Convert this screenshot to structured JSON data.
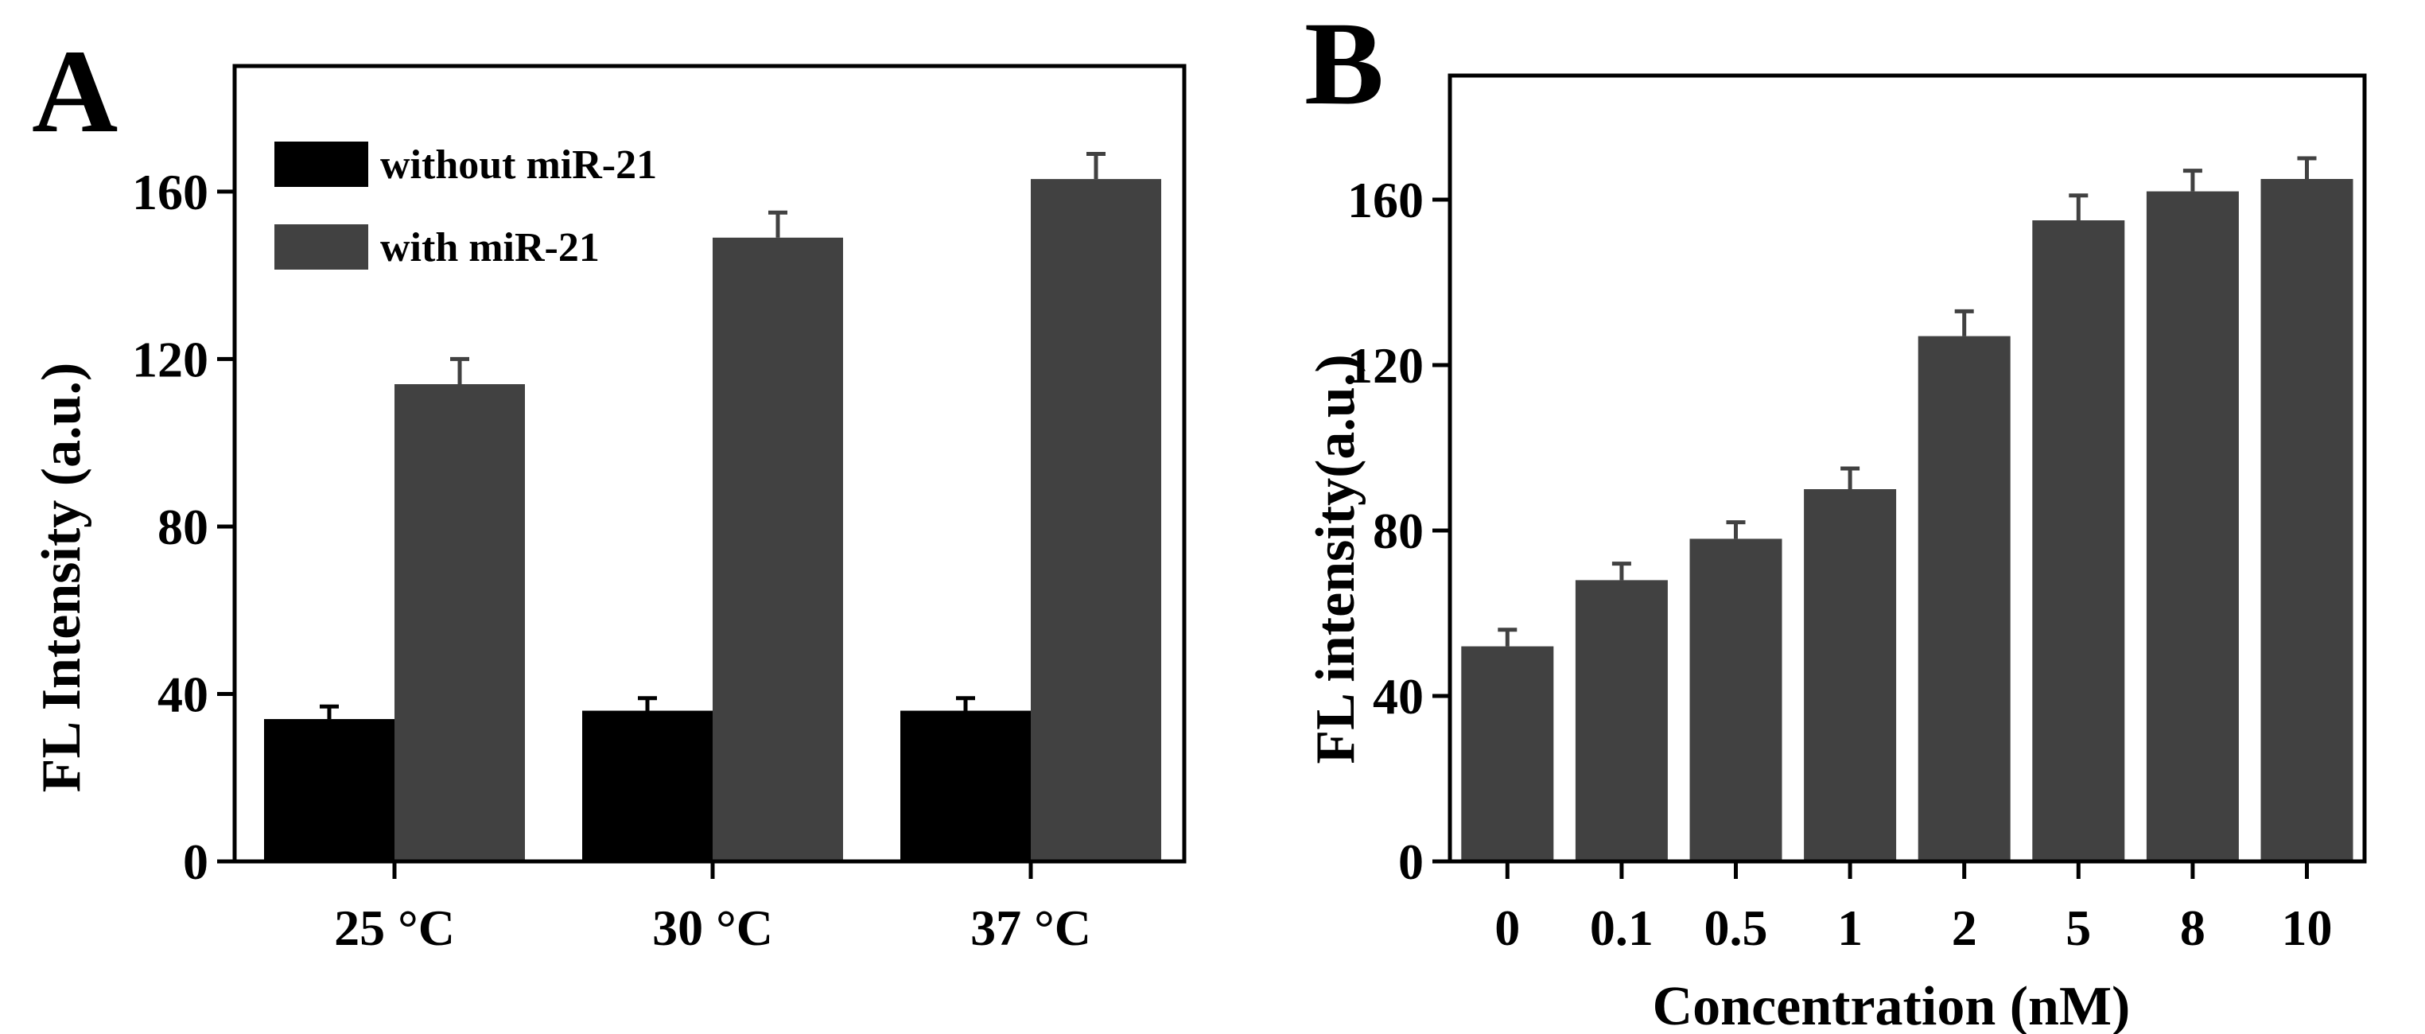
{
  "chart_data": [
    {
      "panel": "A",
      "type": "bar",
      "title": "",
      "xlabel": "",
      "ylabel": "FL Intensity (a.u.)",
      "ylim": [
        0,
        190
      ],
      "yticks": [
        0,
        40,
        80,
        120,
        160
      ],
      "categories": [
        "25 °C",
        "30 °C",
        "37 °C"
      ],
      "legend_position": "top-left",
      "series": [
        {
          "name": "without miR-21",
          "color": "#000000",
          "values": [
            34,
            36,
            36
          ],
          "errors": [
            3,
            3,
            3
          ]
        },
        {
          "name": "with miR-21",
          "color": "#414141",
          "values": [
            114,
            149,
            163
          ],
          "errors": [
            6,
            6,
            6
          ]
        }
      ]
    },
    {
      "panel": "B",
      "type": "bar",
      "title": "",
      "xlabel": "Concentration (nM)",
      "ylabel": "FL intensity(a.u.)",
      "ylim": [
        0,
        190
      ],
      "yticks": [
        0,
        40,
        80,
        120,
        160
      ],
      "categories": [
        "0",
        "0.1",
        "0.5",
        "1",
        "2",
        "5",
        "8",
        "10"
      ],
      "series": [
        {
          "name": "FL intensity",
          "color": "#414141",
          "values": [
            52,
            68,
            78,
            90,
            127,
            155,
            162,
            165
          ],
          "errors": [
            4,
            4,
            4,
            5,
            6,
            6,
            5,
            5
          ]
        }
      ]
    }
  ]
}
